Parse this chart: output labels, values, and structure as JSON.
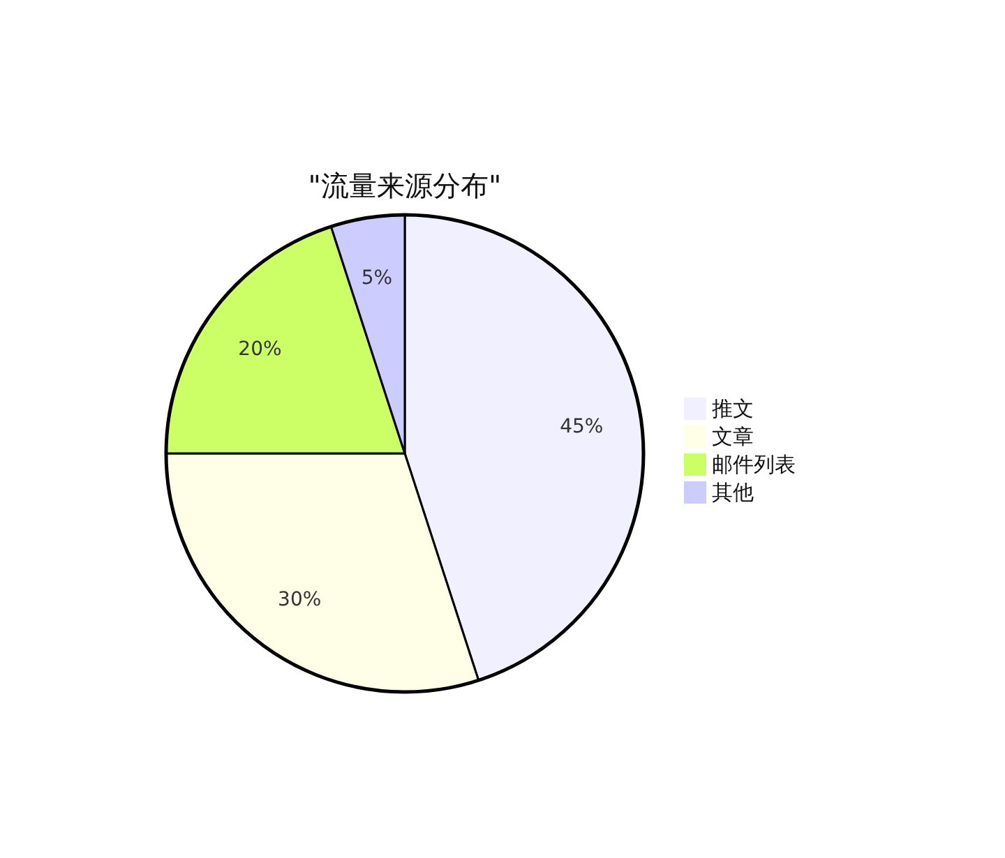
{
  "chart_data": {
    "type": "pie",
    "title": "\"流量来源分布\"",
    "categories": [
      "推文",
      "文章",
      "邮件列表",
      "其他"
    ],
    "values": [
      45,
      30,
      20,
      5
    ],
    "colors": [
      "#f0f0ff",
      "#ffffe8",
      "#ccff66",
      "#ccccff"
    ],
    "value_labels": [
      "45%",
      "30%",
      "20%",
      "5%"
    ],
    "legend": "right"
  }
}
